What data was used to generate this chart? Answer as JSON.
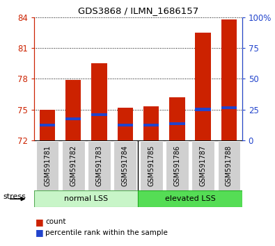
{
  "title": "GDS3868 / ILMN_1686157",
  "categories": [
    "GSM591781",
    "GSM591782",
    "GSM591783",
    "GSM591784",
    "GSM591785",
    "GSM591786",
    "GSM591787",
    "GSM591788"
  ],
  "red_bar_tops": [
    75.0,
    77.9,
    79.5,
    75.2,
    75.3,
    76.2,
    82.5,
    83.8
  ],
  "blue_marker_y": [
    73.5,
    74.1,
    74.5,
    73.5,
    73.5,
    73.6,
    75.0,
    75.2
  ],
  "bar_bottom": 72.0,
  "ylim_left": [
    72,
    84
  ],
  "yticks_left": [
    72,
    75,
    78,
    81,
    84
  ],
  "ylim_right": [
    0,
    100
  ],
  "yticks_right": [
    0,
    25,
    50,
    75,
    100
  ],
  "yticklabels_right": [
    "0",
    "25",
    "50",
    "75",
    "100%"
  ],
  "group_labels": [
    "normal LSS",
    "elevated LSS"
  ],
  "group_colors": [
    "#c8f5c8",
    "#55dd55"
  ],
  "stress_label": "stress",
  "bar_color": "#cc2200",
  "blue_color": "#2244cc",
  "bar_width": 0.6,
  "left_tick_color": "#cc2200",
  "right_tick_color": "#2244cc",
  "legend_items": [
    "count",
    "percentile rank within the sample"
  ],
  "legend_colors": [
    "#cc2200",
    "#2244cc"
  ],
  "tick_label_area_color": "#d0d0d0",
  "label_box_color": "#d0d0d0"
}
